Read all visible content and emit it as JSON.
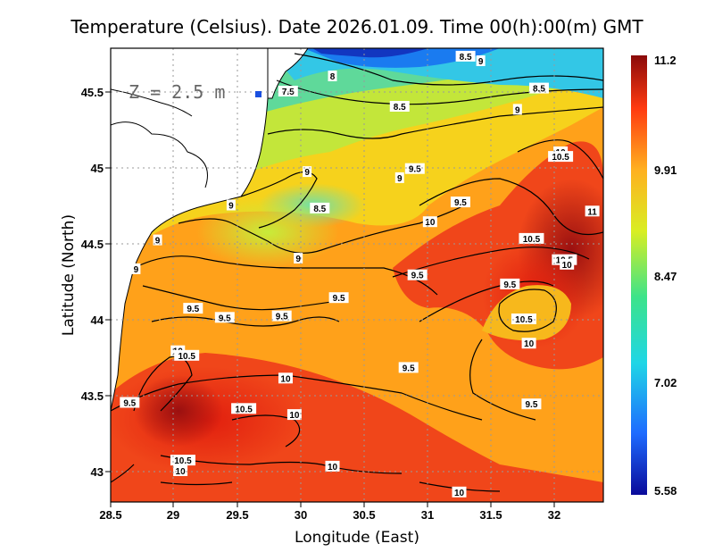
{
  "title": "Temperature (Celsius). Date 2026.01.09. Time 00(h):00(m) GMT",
  "depth_label": "Z = 2.5 m",
  "x_axis": {
    "label": "Longitude (East)",
    "ticks": [
      "28.5",
      "29",
      "29.5",
      "30",
      "30.5",
      "31",
      "31.5",
      "32"
    ]
  },
  "y_axis": {
    "label": "Latitude (North)",
    "ticks": [
      "43",
      "43.5",
      "44",
      "44.5",
      "45",
      "45.5"
    ]
  },
  "colorbar": {
    "ticks": [
      "11.2",
      "9.91",
      "8.47",
      "7.02",
      "5.58"
    ],
    "min": 5.58,
    "max": 11.2,
    "colors": [
      "#0a0a9a",
      "#1e6bff",
      "#1fd6e6",
      "#3ce38a",
      "#d9ee22",
      "#ffb020",
      "#ff3a10",
      "#8a0a0a"
    ]
  },
  "contour_labels": [
    {
      "text": "8.5",
      "lon": 31.3,
      "lat": 45.73
    },
    {
      "text": "9",
      "lon": 31.42,
      "lat": 45.7
    },
    {
      "text": "8",
      "lon": 30.25,
      "lat": 45.6
    },
    {
      "text": "7.5",
      "lon": 29.9,
      "lat": 45.5
    },
    {
      "text": "8.5",
      "lon": 31.88,
      "lat": 45.52
    },
    {
      "text": "8.5",
      "lon": 30.78,
      "lat": 45.4
    },
    {
      "text": "9",
      "lon": 31.71,
      "lat": 45.38
    },
    {
      "text": "10",
      "lon": 32.05,
      "lat": 45.1
    },
    {
      "text": "10.5",
      "lon": 32.05,
      "lat": 45.07
    },
    {
      "text": "9.5",
      "lon": 30.9,
      "lat": 44.99
    },
    {
      "text": "9",
      "lon": 30.05,
      "lat": 44.97
    },
    {
      "text": "9",
      "lon": 30.78,
      "lat": 44.93
    },
    {
      "text": "9.5",
      "lon": 31.26,
      "lat": 44.77
    },
    {
      "text": "8.5",
      "lon": 30.15,
      "lat": 44.73
    },
    {
      "text": "9",
      "lon": 29.45,
      "lat": 44.75
    },
    {
      "text": "11",
      "lon": 32.3,
      "lat": 44.71
    },
    {
      "text": "10",
      "lon": 31.02,
      "lat": 44.64
    },
    {
      "text": "10.5",
      "lon": 31.82,
      "lat": 44.53
    },
    {
      "text": "9",
      "lon": 28.87,
      "lat": 44.52
    },
    {
      "text": "9",
      "lon": 29.98,
      "lat": 44.4
    },
    {
      "text": "9",
      "lon": 28.7,
      "lat": 44.33
    },
    {
      "text": "10.5",
      "lon": 32.08,
      "lat": 44.39
    },
    {
      "text": "10",
      "lon": 32.1,
      "lat": 44.36
    },
    {
      "text": "9.5",
      "lon": 30.92,
      "lat": 44.29
    },
    {
      "text": "9.5",
      "lon": 31.65,
      "lat": 44.23
    },
    {
      "text": "9.5",
      "lon": 30.3,
      "lat": 44.14
    },
    {
      "text": "9.5",
      "lon": 29.15,
      "lat": 44.07
    },
    {
      "text": "9.5",
      "lon": 29.4,
      "lat": 44.01
    },
    {
      "text": "9.5",
      "lon": 29.85,
      "lat": 44.02
    },
    {
      "text": "10.5",
      "lon": 31.76,
      "lat": 44.0
    },
    {
      "text": "10",
      "lon": 31.8,
      "lat": 43.84
    },
    {
      "text": "10",
      "lon": 29.03,
      "lat": 43.79
    },
    {
      "text": "10.5",
      "lon": 29.1,
      "lat": 43.76
    },
    {
      "text": "9.5",
      "lon": 30.85,
      "lat": 43.68
    },
    {
      "text": "10",
      "lon": 29.88,
      "lat": 43.61
    },
    {
      "text": "9.5",
      "lon": 28.65,
      "lat": 43.45
    },
    {
      "text": "9.5",
      "lon": 31.82,
      "lat": 43.44
    },
    {
      "text": "10.5",
      "lon": 29.55,
      "lat": 43.41
    },
    {
      "text": "10",
      "lon": 29.95,
      "lat": 43.37
    },
    {
      "text": "10.5",
      "lon": 29.07,
      "lat": 43.07
    },
    {
      "text": "10",
      "lon": 30.25,
      "lat": 43.03
    },
    {
      "text": "10",
      "lon": 29.05,
      "lat": 43.0
    },
    {
      "text": "10",
      "lon": 31.25,
      "lat": 42.86
    }
  ]
}
